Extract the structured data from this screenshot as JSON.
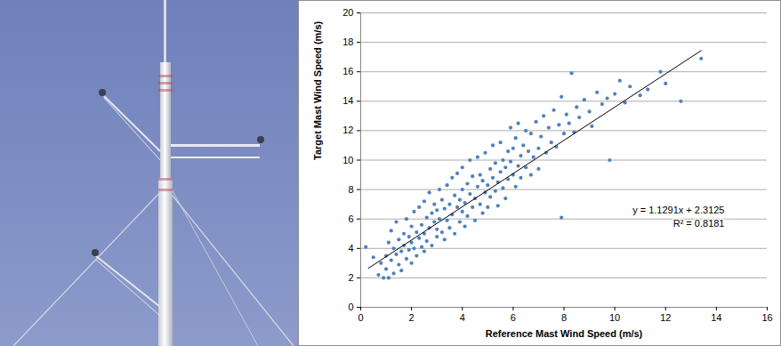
{
  "chart_data": {
    "type": "scatter",
    "xlabel": "Reference Mast Wind Speed (m/s)",
    "ylabel": "Target Mast Wind Speed (m/s)",
    "xlim": [
      0,
      16
    ],
    "xticks": [
      0,
      2,
      4,
      6,
      8,
      10,
      12,
      14,
      16
    ],
    "ylim": [
      0,
      20
    ],
    "yticks": [
      0,
      2,
      4,
      6,
      8,
      10,
      12,
      14,
      16,
      18,
      20
    ],
    "grid": "y",
    "annotations": [
      "y = 1.1291x + 2.3125",
      "R² = 0.8181"
    ],
    "series": [
      {
        "type": "scatter",
        "color": "#4f81bd",
        "marker": "circle",
        "x": [
          0.2,
          0.5,
          0.7,
          0.8,
          0.9,
          1.0,
          1.0,
          1.1,
          1.1,
          1.2,
          1.2,
          1.3,
          1.3,
          1.4,
          1.4,
          1.5,
          1.5,
          1.6,
          1.6,
          1.7,
          1.7,
          1.8,
          1.8,
          1.9,
          1.9,
          2.0,
          2.0,
          2.0,
          2.1,
          2.1,
          2.2,
          2.2,
          2.3,
          2.3,
          2.4,
          2.4,
          2.5,
          2.5,
          2.5,
          2.6,
          2.6,
          2.7,
          2.7,
          2.8,
          2.8,
          2.9,
          2.9,
          3.0,
          3.0,
          3.0,
          3.1,
          3.1,
          3.2,
          3.2,
          3.3,
          3.3,
          3.4,
          3.4,
          3.5,
          3.5,
          3.6,
          3.6,
          3.7,
          3.7,
          3.8,
          3.8,
          3.9,
          3.9,
          4.0,
          4.0,
          4.0,
          4.1,
          4.1,
          4.2,
          4.2,
          4.3,
          4.3,
          4.4,
          4.4,
          4.5,
          4.5,
          4.6,
          4.6,
          4.7,
          4.7,
          4.8,
          4.8,
          4.9,
          4.9,
          5.0,
          5.0,
          5.1,
          5.1,
          5.2,
          5.2,
          5.3,
          5.3,
          5.4,
          5.4,
          5.5,
          5.5,
          5.6,
          5.6,
          5.7,
          5.7,
          5.8,
          5.8,
          5.9,
          5.9,
          6.0,
          6.0,
          6.1,
          6.1,
          6.2,
          6.2,
          6.3,
          6.3,
          6.4,
          6.5,
          6.5,
          6.6,
          6.7,
          6.7,
          6.8,
          6.9,
          7.0,
          7.0,
          7.1,
          7.2,
          7.3,
          7.4,
          7.5,
          7.6,
          7.7,
          7.8,
          7.9,
          7.9,
          8.0,
          8.1,
          8.2,
          8.3,
          8.4,
          8.5,
          8.6,
          8.8,
          9.0,
          9.1,
          9.3,
          9.5,
          9.7,
          9.8,
          10.0,
          10.2,
          10.4,
          10.6,
          11.0,
          11.3,
          11.8,
          12.0,
          12.6,
          13.4
        ],
        "values": [
          4.1,
          3.4,
          2.2,
          3.0,
          2.0,
          3.5,
          2.6,
          4.4,
          2.0,
          5.2,
          3.2,
          2.3,
          4.0,
          3.6,
          5.8,
          2.9,
          4.6,
          3.8,
          2.5,
          5.0,
          4.2,
          3.3,
          6.0,
          4.8,
          3.9,
          5.5,
          4.4,
          3.0,
          6.5,
          4.0,
          5.1,
          3.5,
          4.7,
          6.8,
          5.6,
          4.1,
          7.2,
          5.0,
          3.8,
          6.1,
          4.5,
          5.4,
          7.8,
          6.4,
          4.2,
          5.8,
          7.0,
          4.8,
          6.6,
          5.3,
          8.0,
          6.0,
          5.1,
          7.3,
          6.7,
          4.6,
          5.9,
          8.3,
          7.0,
          5.4,
          6.3,
          8.8,
          7.6,
          5.0,
          6.8,
          9.1,
          7.3,
          5.8,
          8.0,
          6.5,
          9.5,
          7.1,
          5.5,
          8.4,
          6.2,
          7.7,
          10.0,
          6.8,
          8.9,
          7.4,
          5.9,
          8.2,
          10.2,
          7.0,
          9.0,
          6.4,
          8.6,
          7.8,
          10.5,
          8.3,
          6.8,
          9.4,
          7.5,
          8.8,
          11.0,
          7.9,
          9.8,
          8.5,
          6.9,
          9.2,
          11.2,
          8.1,
          10.0,
          9.5,
          7.4,
          10.6,
          8.7,
          9.9,
          12.2,
          9.0,
          10.8,
          8.2,
          11.5,
          9.6,
          12.5,
          10.3,
          8.8,
          11.0,
          9.5,
          12.0,
          10.6,
          9.0,
          11.8,
          10.2,
          12.6,
          10.8,
          9.4,
          11.6,
          13.0,
          10.5,
          12.2,
          11.2,
          13.4,
          10.9,
          12.4,
          6.1,
          14.3,
          11.8,
          13.1,
          12.5,
          15.9,
          11.9,
          13.6,
          12.9,
          14.1,
          13.3,
          12.3,
          14.6,
          13.8,
          14.2,
          10.0,
          14.5,
          15.4,
          13.9,
          15.0,
          14.4,
          14.8,
          16.0,
          15.2,
          14.0,
          16.9
        ]
      },
      {
        "type": "line",
        "color": "#000000",
        "line_style": "solid",
        "x": [
          0.3,
          13.4
        ],
        "values": [
          2.65,
          17.44
        ]
      }
    ]
  }
}
